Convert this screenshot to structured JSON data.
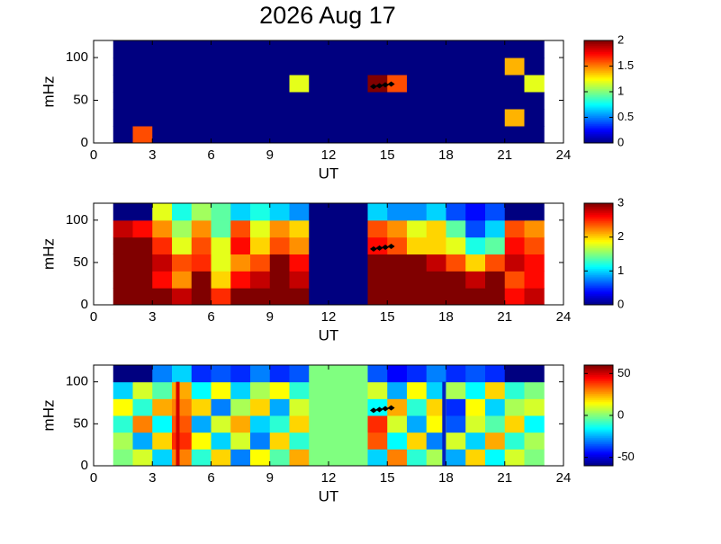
{
  "chart_data": [
    {
      "type": "heatmap",
      "title": "2026 Aug 17",
      "xlabel": "UT",
      "ylabel": "mHz",
      "xlim": [
        0,
        24
      ],
      "xticks": [
        0,
        3,
        6,
        9,
        12,
        15,
        18,
        21,
        24
      ],
      "ylim": [
        0,
        120
      ],
      "yticks": [
        0,
        50,
        100
      ],
      "xbins": [
        0,
        1,
        2,
        3,
        4,
        5,
        6,
        7,
        8,
        9,
        10,
        11,
        12,
        13,
        14,
        15,
        16,
        17,
        18,
        19,
        20,
        21,
        22,
        23,
        24
      ],
      "ybins": [
        0,
        20,
        40,
        60,
        80,
        100,
        120
      ],
      "colormap": "jet",
      "clim": [
        0,
        2
      ],
      "cticks": [
        0,
        0.5,
        1,
        1.5,
        2
      ],
      "z": [
        [
          null,
          0,
          1.6,
          0,
          0,
          0,
          0,
          0,
          0,
          0,
          0,
          0,
          0,
          0,
          0,
          0,
          0,
          0,
          0,
          0,
          0,
          0,
          0,
          null
        ],
        [
          null,
          0,
          0,
          0,
          0,
          0,
          0,
          0,
          0,
          0,
          0,
          0,
          0,
          0,
          0,
          0,
          0,
          0,
          0,
          0,
          0,
          1.4,
          0,
          null
        ],
        [
          null,
          0,
          0,
          0,
          0,
          0,
          0,
          0,
          0,
          0,
          0,
          0,
          0,
          0,
          0,
          0,
          0,
          0,
          0,
          0,
          0,
          0,
          0,
          null
        ],
        [
          null,
          0,
          0,
          0,
          0,
          0,
          0,
          0,
          0,
          0,
          1.2,
          0,
          0,
          0,
          2,
          1.6,
          0,
          0,
          0,
          0,
          0,
          0,
          1.2,
          null
        ],
        [
          null,
          0,
          0,
          0,
          0,
          0,
          0,
          0,
          0,
          0,
          0,
          0,
          0,
          0,
          0,
          0,
          0,
          0,
          0,
          0,
          0,
          1.4,
          0,
          null
        ],
        [
          null,
          0,
          0,
          0,
          0,
          0,
          0,
          0,
          0,
          0,
          0,
          0,
          0,
          0,
          0,
          0,
          0,
          0,
          0,
          0,
          0,
          0,
          0,
          null
        ]
      ],
      "markers": {
        "x": [
          14.3,
          14.6,
          14.9,
          15.2
        ],
        "y": [
          66,
          67,
          68,
          69
        ]
      }
    },
    {
      "type": "heatmap",
      "xlabel": "UT",
      "ylabel": "mHz",
      "xlim": [
        0,
        24
      ],
      "xticks": [
        0,
        3,
        6,
        9,
        12,
        15,
        18,
        21,
        24
      ],
      "ylim": [
        0,
        120
      ],
      "yticks": [
        0,
        50,
        100
      ],
      "xbins": [
        0,
        1,
        2,
        3,
        4,
        5,
        6,
        7,
        8,
        9,
        10,
        11,
        12,
        13,
        14,
        15,
        16,
        17,
        18,
        19,
        20,
        21,
        22,
        23,
        24
      ],
      "ybins": [
        0,
        20,
        40,
        60,
        80,
        100,
        120
      ],
      "colormap": "jet",
      "clim": [
        0,
        3
      ],
      "cticks": [
        0,
        1,
        2,
        3
      ],
      "z": [
        [
          null,
          3,
          3,
          3,
          2.8,
          3,
          2.5,
          3,
          3,
          3,
          3,
          0,
          0,
          0,
          3,
          3,
          3,
          3,
          3,
          3,
          3,
          2.6,
          2.8,
          null
        ],
        [
          null,
          3,
          3,
          2.6,
          2.2,
          3,
          2.0,
          2.6,
          2.8,
          3,
          2.8,
          0,
          0,
          0,
          3,
          3,
          3,
          3,
          3,
          2.8,
          3,
          2.4,
          2.6,
          null
        ],
        [
          null,
          3,
          3,
          2.8,
          2.4,
          2.5,
          1.8,
          2.2,
          2.4,
          3,
          2.6,
          0,
          0,
          0,
          3,
          3,
          3,
          2.8,
          2.4,
          2.0,
          2.4,
          2.8,
          2.6,
          null
        ],
        [
          null,
          3,
          3,
          2.5,
          1.8,
          2.4,
          1.8,
          2.6,
          2.0,
          2.4,
          2.2,
          0,
          0,
          0,
          2.6,
          2.4,
          2.0,
          2.0,
          1.8,
          1.2,
          1.4,
          2.6,
          2.4,
          null
        ],
        [
          null,
          2.8,
          2.6,
          2.2,
          1.6,
          2.2,
          1.4,
          2.4,
          1.8,
          2.2,
          2.0,
          0,
          0,
          0,
          2.4,
          2.2,
          1.8,
          2.0,
          1.4,
          0.6,
          1.0,
          2.4,
          2.2,
          null
        ],
        [
          null,
          0,
          0,
          1.8,
          1.2,
          1.6,
          1.4,
          1.0,
          1.2,
          1.0,
          0.8,
          0,
          0,
          0,
          1.0,
          0.8,
          0.8,
          1.0,
          0.6,
          0.4,
          0.6,
          0,
          0,
          null
        ]
      ],
      "markers": {
        "x": [
          14.3,
          14.6,
          14.9,
          15.2
        ],
        "y": [
          66,
          67,
          68,
          69
        ]
      }
    },
    {
      "type": "heatmap",
      "xlabel": "UT",
      "ylabel": "mHz",
      "xlim": [
        0,
        24
      ],
      "xticks": [
        0,
        3,
        6,
        9,
        12,
        15,
        18,
        21,
        24
      ],
      "ylim": [
        0,
        120
      ],
      "yticks": [
        0,
        50,
        100
      ],
      "xbins": [
        0,
        1,
        2,
        3,
        4,
        5,
        6,
        7,
        8,
        9,
        10,
        11,
        12,
        13,
        14,
        15,
        16,
        17,
        18,
        19,
        20,
        21,
        22,
        23,
        24
      ],
      "ybins": [
        0,
        20,
        40,
        60,
        80,
        100,
        120
      ],
      "colormap": "jet",
      "clim": [
        -60,
        60
      ],
      "cticks": [
        -50,
        0,
        50
      ],
      "z": [
        [
          null,
          0,
          10,
          -20,
          30,
          -10,
          20,
          -30,
          15,
          -5,
          25,
          0,
          0,
          0,
          -20,
          30,
          -10,
          5,
          -25,
          20,
          -15,
          10,
          0,
          null
        ],
        [
          null,
          5,
          -25,
          20,
          40,
          15,
          -20,
          10,
          -30,
          20,
          -10,
          0,
          0,
          0,
          35,
          -15,
          20,
          -30,
          10,
          -20,
          25,
          -10,
          5,
          null
        ],
        [
          null,
          -10,
          30,
          -15,
          35,
          -25,
          10,
          25,
          -20,
          -10,
          20,
          0,
          0,
          0,
          40,
          10,
          -25,
          15,
          -35,
          10,
          -5,
          20,
          -15,
          null
        ],
        [
          null,
          15,
          -10,
          25,
          30,
          20,
          -30,
          5,
          20,
          -25,
          10,
          0,
          0,
          0,
          -15,
          25,
          -10,
          20,
          -40,
          15,
          -20,
          5,
          10,
          null
        ],
        [
          null,
          -20,
          10,
          -5,
          25,
          -15,
          15,
          -20,
          5,
          15,
          -10,
          0,
          0,
          0,
          10,
          -25,
          15,
          -20,
          5,
          -15,
          20,
          -10,
          0,
          null
        ],
        [
          null,
          -60,
          -60,
          -30,
          -20,
          -40,
          -35,
          -40,
          -30,
          -40,
          -35,
          0,
          0,
          0,
          -35,
          -45,
          -40,
          -30,
          -40,
          -35,
          -40,
          -60,
          -60,
          null
        ]
      ],
      "vlines": [
        {
          "x": 4.3,
          "color": "#d40000"
        },
        {
          "x": 17.9,
          "color": "#0020c0"
        }
      ],
      "markers": {
        "x": [
          14.3,
          14.6,
          14.9,
          15.2
        ],
        "y": [
          66,
          67,
          68,
          69
        ]
      }
    }
  ]
}
